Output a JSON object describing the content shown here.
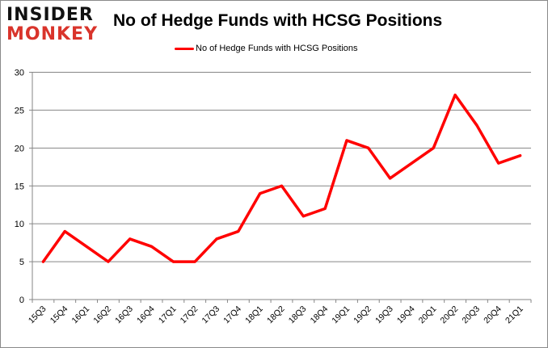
{
  "logo": {
    "line1": "INSIDER",
    "line2": "MONKEY"
  },
  "chart_data": {
    "type": "line",
    "title": "No of Hedge Funds with HCSG Positions",
    "xlabel": "",
    "ylabel": "",
    "categories": [
      "15Q3",
      "15Q4",
      "16Q1",
      "16Q2",
      "16Q3",
      "16Q4",
      "17Q1",
      "17Q2",
      "17Q3",
      "17Q4",
      "18Q1",
      "18Q2",
      "18Q3",
      "18Q4",
      "19Q1",
      "19Q2",
      "19Q3",
      "19Q4",
      "20Q1",
      "20Q2",
      "20Q3",
      "20Q4",
      "21Q1"
    ],
    "series": [
      {
        "name": "No of Hedge Funds with HCSG Positions",
        "color": "#ff0000",
        "values": [
          5,
          9,
          7,
          5,
          8,
          7,
          5,
          5,
          8,
          9,
          14,
          15,
          11,
          12,
          21,
          20,
          16,
          18,
          20,
          27,
          23,
          18,
          19
        ]
      }
    ],
    "ylim": [
      0,
      30
    ],
    "yticks": [
      0,
      5,
      10,
      15,
      20,
      25,
      30
    ],
    "grid": true,
    "legend_position": "top-center"
  }
}
